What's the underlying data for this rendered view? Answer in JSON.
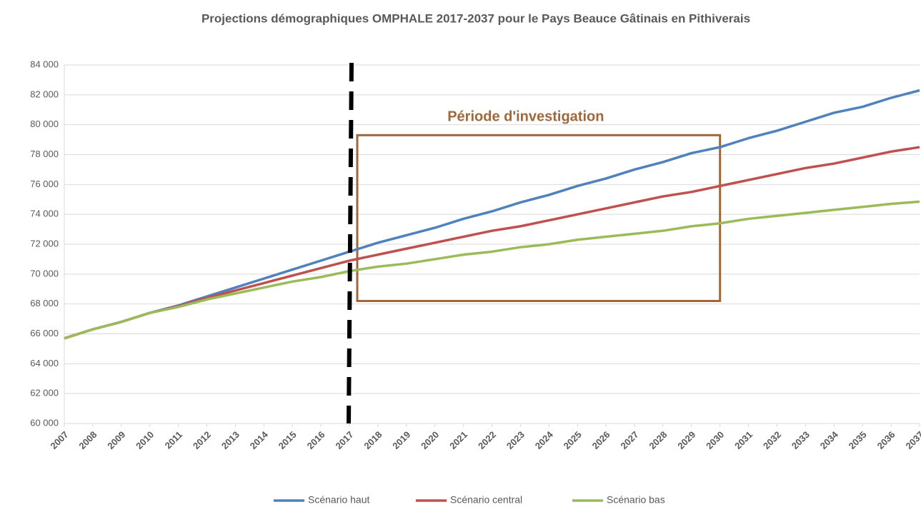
{
  "chart_data": {
    "type": "line",
    "title": "Projections démographiques OMPHALE 2017-2037 pour le Pays Beauce Gâtinais en Pithiverais",
    "categories": [
      "2007",
      "2008",
      "2009",
      "2010",
      "2011",
      "2012",
      "2013",
      "2014",
      "2015",
      "2016",
      "2017",
      "2018",
      "2019",
      "2020",
      "2021",
      "2022",
      "2023",
      "2024",
      "2025",
      "2026",
      "2027",
      "2028",
      "2029",
      "2030",
      "2031",
      "2032",
      "2033",
      "2034",
      "2035",
      "2036",
      "2037"
    ],
    "series": [
      {
        "name": "Scénario haut",
        "color": "#4f81bd",
        "values": [
          65700,
          66300,
          66800,
          67400,
          67900,
          68500,
          69100,
          69700,
          70300,
          70900,
          71500,
          72100,
          72600,
          73100,
          73700,
          74200,
          74800,
          75300,
          75900,
          76400,
          77000,
          77500,
          78100,
          78500,
          79100,
          79600,
          80200,
          80800,
          81200,
          81800,
          82300
        ]
      },
      {
        "name": "Scénario central",
        "color": "#c0504d",
        "values": [
          65700,
          66300,
          66800,
          67400,
          67850,
          68400,
          68900,
          69400,
          69900,
          70400,
          70900,
          71300,
          71700,
          72100,
          72500,
          72900,
          73200,
          73600,
          74000,
          74400,
          74800,
          75200,
          75500,
          75900,
          76300,
          76700,
          77100,
          77400,
          77800,
          78200,
          78500
        ]
      },
      {
        "name": "Scénario bas",
        "color": "#9bbb59",
        "values": [
          65700,
          66300,
          66800,
          67400,
          67800,
          68300,
          68700,
          69100,
          69500,
          69800,
          70200,
          70500,
          70700,
          71000,
          71300,
          71500,
          71800,
          72000,
          72300,
          72500,
          72700,
          72900,
          73200,
          73400,
          73700,
          73900,
          74100,
          74300,
          74500,
          74700,
          74850
        ]
      }
    ],
    "ylim": [
      60000,
      84000
    ],
    "yticks": [
      {
        "value": 60000,
        "label": "60 000"
      },
      {
        "value": 62000,
        "label": "62 000"
      },
      {
        "value": 64000,
        "label": "64 000"
      },
      {
        "value": 66000,
        "label": "66 000"
      },
      {
        "value": 68000,
        "label": "68 000"
      },
      {
        "value": 70000,
        "label": "70 000"
      },
      {
        "value": 72000,
        "label": "72 000"
      },
      {
        "value": 74000,
        "label": "74 000"
      },
      {
        "value": 76000,
        "label": "76 000"
      },
      {
        "value": 78000,
        "label": "78 000"
      },
      {
        "value": 80000,
        "label": "80 000"
      },
      {
        "value": 82000,
        "label": "82 000"
      },
      {
        "value": 84000,
        "label": "84 000"
      }
    ],
    "grid": true,
    "legend": "bottom",
    "vline": "2017",
    "highlight": {
      "label": "Période d'investigation",
      "from": "2017",
      "to": "2030",
      "ylim": [
        68200,
        79300
      ],
      "color": "#a0673a"
    }
  }
}
